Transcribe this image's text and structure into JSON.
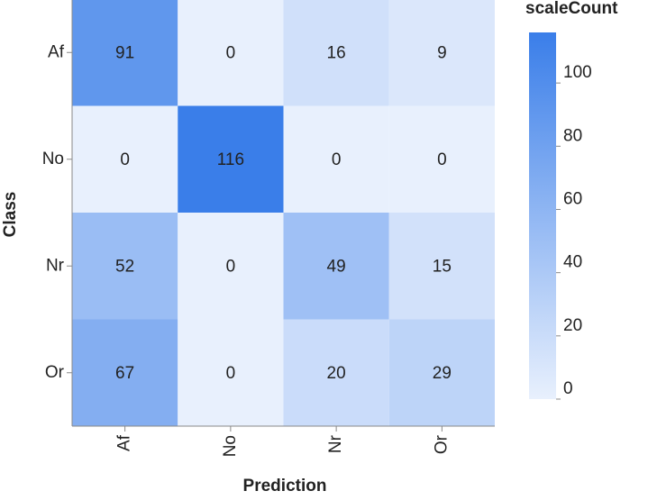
{
  "chart_data": {
    "type": "heatmap",
    "x_label": "Prediction",
    "y_label": "Class",
    "legend_title": "scaleCount",
    "x_categories": [
      "Af",
      "No",
      "Nr",
      "Or"
    ],
    "y_categories": [
      "Af",
      "No",
      "Nr",
      "Or"
    ],
    "values": [
      [
        91,
        0,
        16,
        9
      ],
      [
        0,
        116,
        0,
        0
      ],
      [
        52,
        0,
        49,
        15
      ],
      [
        67,
        0,
        20,
        29
      ]
    ],
    "colors": [
      "#e8f0fd",
      "#3a7ee9"
    ],
    "colorlim": [
      0,
      116
    ],
    "colorticks": [
      0,
      20,
      40,
      60,
      80,
      100
    ]
  }
}
